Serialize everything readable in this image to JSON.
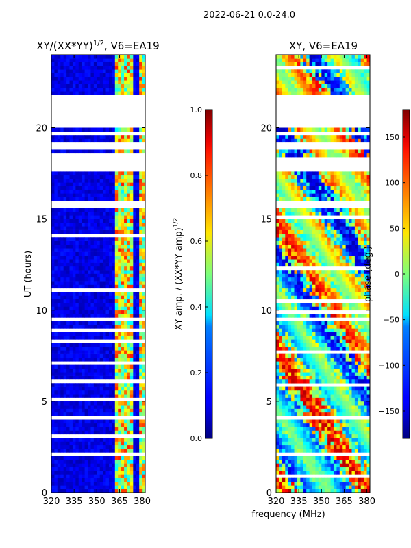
{
  "suptitle": "2022-06-21 0.0-24.0",
  "xlabel_shared": "frequency (MHz)",
  "chart_data": [
    {
      "type": "heatmap",
      "title": "XY/(XX*YY)",
      "title_exponent": "1/2",
      "title_suffix": ", V6=EA19",
      "xlabel": "frequency (MHz)",
      "ylabel": "UT (hours)",
      "xlim": [
        320,
        382
      ],
      "ylim": [
        0,
        24
      ],
      "xticks": [
        320,
        335,
        350,
        365,
        380
      ],
      "yticks": [
        0,
        5,
        10,
        15,
        20
      ],
      "colorbar": {
        "label": "XY amp. / (XX*YY amp)",
        "label_exponent": "1/2",
        "range": [
          0.0,
          1.0
        ],
        "ticks": [
          "0.0",
          "0.2",
          "0.4",
          "0.6",
          "0.8",
          "1.0"
        ],
        "colormap": "jet"
      }
    },
    {
      "type": "heatmap",
      "title": "XY, V6=EA19",
      "xlabel": "frequency (MHz)",
      "ylabel": "",
      "xlim": [
        320,
        382
      ],
      "ylim": [
        0,
        24
      ],
      "xticks": [
        320,
        335,
        350,
        365,
        380
      ],
      "yticks": [
        0,
        5,
        10,
        15,
        20
      ],
      "colorbar": {
        "label": "phase (deg.)",
        "range": [
          -180,
          180
        ],
        "ticks": [
          "−150",
          "−100",
          "−50",
          "0",
          "50",
          "100",
          "150"
        ],
        "colormap": "jet"
      }
    }
  ]
}
